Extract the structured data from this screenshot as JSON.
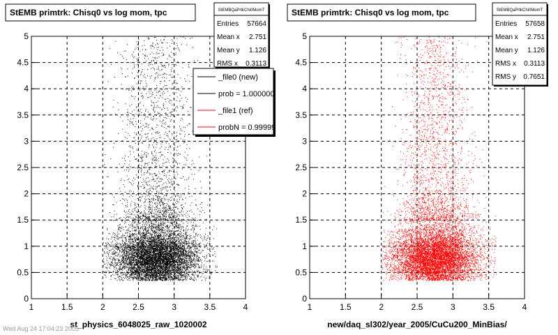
{
  "chart_data": [
    {
      "type": "scatter",
      "title": "StEMB primtrk: Chisq0 vs log mom, tpc",
      "xlabel": "st_physics_6048025_raw_1020002",
      "ylabel": "",
      "xlim": [
        1,
        4
      ],
      "ylim": [
        0,
        5
      ],
      "x_ticks": [
        "1",
        "1.5",
        "2",
        "2.5",
        "3",
        "3.5",
        "4"
      ],
      "y_ticks": [
        "0",
        "0.5",
        "1",
        "1.5",
        "2",
        "2.5",
        "3",
        "3.5",
        "4",
        "4.5",
        "5"
      ],
      "grid": true,
      "marker_color": "#000000",
      "distribution": {
        "x_range": [
          2.0,
          3.6
        ],
        "x_peak": 2.75,
        "y_peak": 0.8,
        "tail_to": 5
      },
      "stats": {
        "name": "StEMBQaPrtkChi0MomT",
        "rows": [
          {
            "label": "Entries",
            "value": "57664"
          },
          {
            "label": "Mean x",
            "value": "2.751"
          },
          {
            "label": "Mean y",
            "value": "1.126"
          },
          {
            "label": "RMS x",
            "value": "0.3113"
          }
        ]
      },
      "legend": {
        "placement": "top-right",
        "entries": [
          {
            "label": "_file0 (new)",
            "color": "#000000"
          },
          {
            "label": "prob = 1.000000",
            "color": "#000000"
          },
          {
            "label": "_file1 (ref)",
            "color": "#ff0000"
          },
          {
            "label": "probN = 0.999990",
            "color": "#ff0000"
          }
        ]
      }
    },
    {
      "type": "scatter",
      "title": "StEMB primtrk: Chisq0 vs log mom, tpc",
      "xlabel": "new/daq_sl302/year_2005/CuCu200_MinBias/",
      "ylabel": "",
      "xlim": [
        1,
        4
      ],
      "ylim": [
        0,
        5
      ],
      "x_ticks": [
        "1",
        "1.5",
        "2",
        "2.5",
        "3",
        "3.5",
        "4"
      ],
      "y_ticks": [
        "0",
        "0.5",
        "1",
        "1.5",
        "2",
        "2.5",
        "3",
        "3.5",
        "4",
        "4.5",
        "5"
      ],
      "grid": true,
      "marker_color": "#ff0000",
      "distribution": {
        "x_range": [
          2.0,
          3.6
        ],
        "x_peak": 2.75,
        "y_peak": 0.8,
        "tail_to": 5
      },
      "stats": {
        "name": "StEMBQaPrtkChi0MomT",
        "rows": [
          {
            "label": "Entries",
            "value": "57658"
          },
          {
            "label": "Mean x",
            "value": "2.751"
          },
          {
            "label": "Mean y",
            "value": "1.126"
          },
          {
            "label": "RMS x",
            "value": "0.3113"
          },
          {
            "label": "RMS y",
            "value": "0.7651"
          }
        ]
      }
    }
  ],
  "footer": "Wed Aug 24 17:04:23 2005"
}
